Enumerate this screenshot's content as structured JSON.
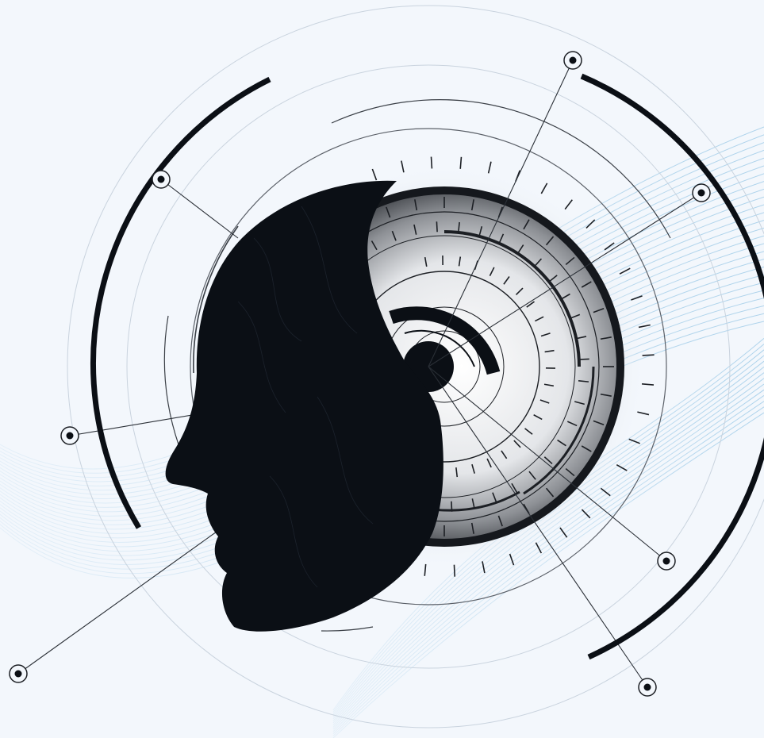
{
  "colors": {
    "background": "#f3f7fc",
    "ink": "#0b0f15",
    "wave": "#8fc3e4",
    "line": "#2a2f36",
    "faint_ring": "#c9d3de"
  },
  "icons": {
    "head": "ai-head-silhouette-icon",
    "node": "circle-node-icon"
  }
}
